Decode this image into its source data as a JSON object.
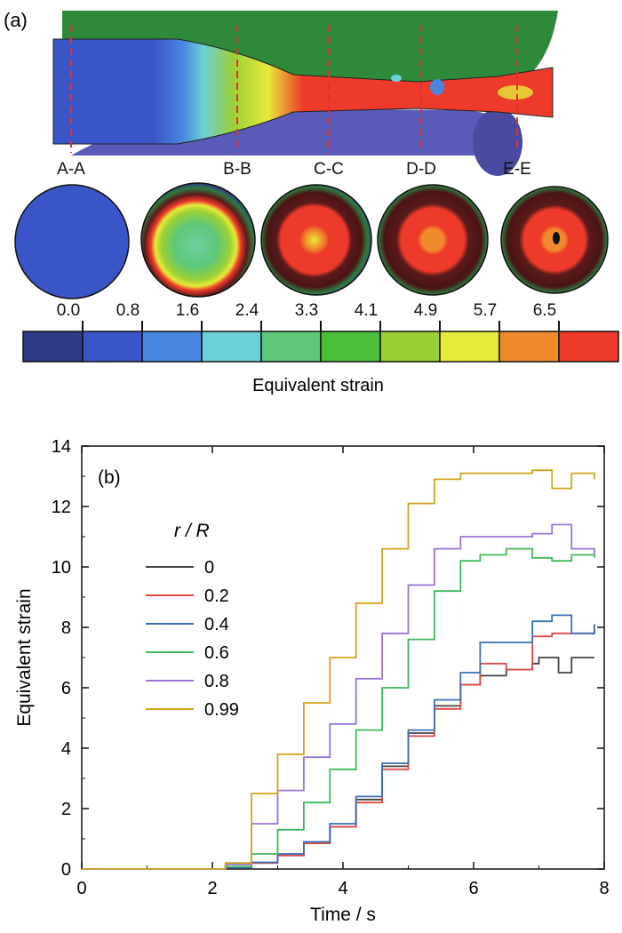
{
  "panel_a": {
    "label": "(a)",
    "sections": [
      "A-A",
      "B-B",
      "C-C",
      "D-D",
      "E-E"
    ],
    "scale_ticks": [
      "0.0",
      "0.8",
      "1.6",
      "2.4",
      "3.3",
      "4.1",
      "4.9",
      "5.7",
      "6.5"
    ],
    "scale_colors": [
      "#2e3a86",
      "#3a55c8",
      "#4a86e0",
      "#6cd0d8",
      "#5ec878",
      "#4cbf3a",
      "#9ad036",
      "#e6ea3a",
      "#f08a2c",
      "#ee3a2a"
    ],
    "scale_title": "Equivalent strain"
  },
  "chart_data": {
    "type": "line",
    "panel_label": "(b)",
    "xlabel": "Time / s",
    "ylabel": "Equivalent strain",
    "xlim": [
      0,
      8
    ],
    "ylim": [
      0,
      14
    ],
    "xticks": [
      "0",
      "2",
      "4",
      "6",
      "8"
    ],
    "yticks": [
      "0",
      "2",
      "4",
      "6",
      "8",
      "10",
      "12",
      "14"
    ],
    "legend_title": "r / R",
    "legend_position": "upper-left",
    "series": [
      {
        "name": "0",
        "color": "#444444",
        "points": [
          [
            0,
            0
          ],
          [
            1.8,
            0
          ],
          [
            2.2,
            0.05
          ],
          [
            2.6,
            0.2
          ],
          [
            3.0,
            0.45
          ],
          [
            3.4,
            0.85
          ],
          [
            3.8,
            1.4
          ],
          [
            4.2,
            2.3
          ],
          [
            4.6,
            3.4
          ],
          [
            5.0,
            4.5
          ],
          [
            5.4,
            5.4
          ],
          [
            5.8,
            6.1
          ],
          [
            6.1,
            6.4
          ],
          [
            6.5,
            6.6
          ],
          [
            6.9,
            6.8
          ],
          [
            7.0,
            7.0
          ],
          [
            7.3,
            6.5
          ],
          [
            7.5,
            7.0
          ],
          [
            7.85,
            7.0
          ]
        ]
      },
      {
        "name": "0.2",
        "color": "#e04848",
        "points": [
          [
            0,
            0
          ],
          [
            1.8,
            0
          ],
          [
            2.2,
            0.05
          ],
          [
            2.6,
            0.2
          ],
          [
            3.0,
            0.45
          ],
          [
            3.4,
            0.85
          ],
          [
            3.8,
            1.4
          ],
          [
            4.2,
            2.2
          ],
          [
            4.6,
            3.3
          ],
          [
            5.0,
            4.4
          ],
          [
            5.4,
            5.3
          ],
          [
            5.8,
            6.1
          ],
          [
            6.1,
            6.8
          ],
          [
            6.5,
            6.6
          ],
          [
            6.9,
            7.7
          ],
          [
            7.2,
            7.8
          ],
          [
            7.5,
            7.8
          ],
          [
            7.85,
            8.1
          ]
        ]
      },
      {
        "name": "0.4",
        "color": "#3a6fb8",
        "points": [
          [
            0,
            0
          ],
          [
            1.8,
            0
          ],
          [
            2.2,
            0.05
          ],
          [
            2.6,
            0.22
          ],
          [
            3.0,
            0.5
          ],
          [
            3.4,
            0.9
          ],
          [
            3.8,
            1.5
          ],
          [
            4.2,
            2.4
          ],
          [
            4.6,
            3.5
          ],
          [
            5.0,
            4.6
          ],
          [
            5.4,
            5.6
          ],
          [
            5.8,
            6.5
          ],
          [
            6.1,
            7.5
          ],
          [
            6.5,
            7.5
          ],
          [
            6.9,
            8.2
          ],
          [
            7.2,
            8.4
          ],
          [
            7.5,
            7.8
          ],
          [
            7.85,
            8.1
          ]
        ]
      },
      {
        "name": "0.6",
        "color": "#3fb85a",
        "points": [
          [
            0,
            0
          ],
          [
            1.8,
            0
          ],
          [
            2.2,
            0.08
          ],
          [
            2.6,
            0.5
          ],
          [
            3.0,
            1.3
          ],
          [
            3.4,
            2.2
          ],
          [
            3.8,
            3.3
          ],
          [
            4.2,
            4.6
          ],
          [
            4.6,
            6.0
          ],
          [
            5.0,
            7.6
          ],
          [
            5.4,
            9.2
          ],
          [
            5.8,
            10.2
          ],
          [
            6.1,
            10.4
          ],
          [
            6.5,
            10.6
          ],
          [
            6.9,
            10.3
          ],
          [
            7.2,
            10.2
          ],
          [
            7.5,
            10.4
          ],
          [
            7.85,
            10.3
          ]
        ]
      },
      {
        "name": "0.8",
        "color": "#9a74d6",
        "points": [
          [
            0,
            0
          ],
          [
            1.8,
            0
          ],
          [
            2.2,
            0.15
          ],
          [
            2.6,
            1.5
          ],
          [
            3.0,
            2.6
          ],
          [
            3.4,
            3.7
          ],
          [
            3.8,
            4.8
          ],
          [
            4.2,
            6.3
          ],
          [
            4.6,
            7.8
          ],
          [
            5.0,
            9.4
          ],
          [
            5.4,
            10.6
          ],
          [
            5.8,
            11.0
          ],
          [
            6.1,
            11.0
          ],
          [
            6.5,
            11.0
          ],
          [
            6.9,
            11.1
          ],
          [
            7.2,
            11.4
          ],
          [
            7.5,
            10.6
          ],
          [
            7.85,
            10.4
          ]
        ]
      },
      {
        "name": "0.99",
        "color": "#d4a21e",
        "points": [
          [
            0,
            0
          ],
          [
            1.8,
            0
          ],
          [
            2.2,
            0.2
          ],
          [
            2.6,
            2.5
          ],
          [
            3.0,
            3.8
          ],
          [
            3.4,
            5.5
          ],
          [
            3.8,
            7.0
          ],
          [
            4.2,
            8.8
          ],
          [
            4.6,
            10.6
          ],
          [
            5.0,
            12.1
          ],
          [
            5.4,
            12.9
          ],
          [
            5.8,
            13.1
          ],
          [
            6.1,
            13.1
          ],
          [
            6.5,
            13.1
          ],
          [
            6.9,
            13.2
          ],
          [
            7.2,
            12.6
          ],
          [
            7.5,
            13.1
          ],
          [
            7.85,
            12.9
          ]
        ]
      }
    ]
  }
}
